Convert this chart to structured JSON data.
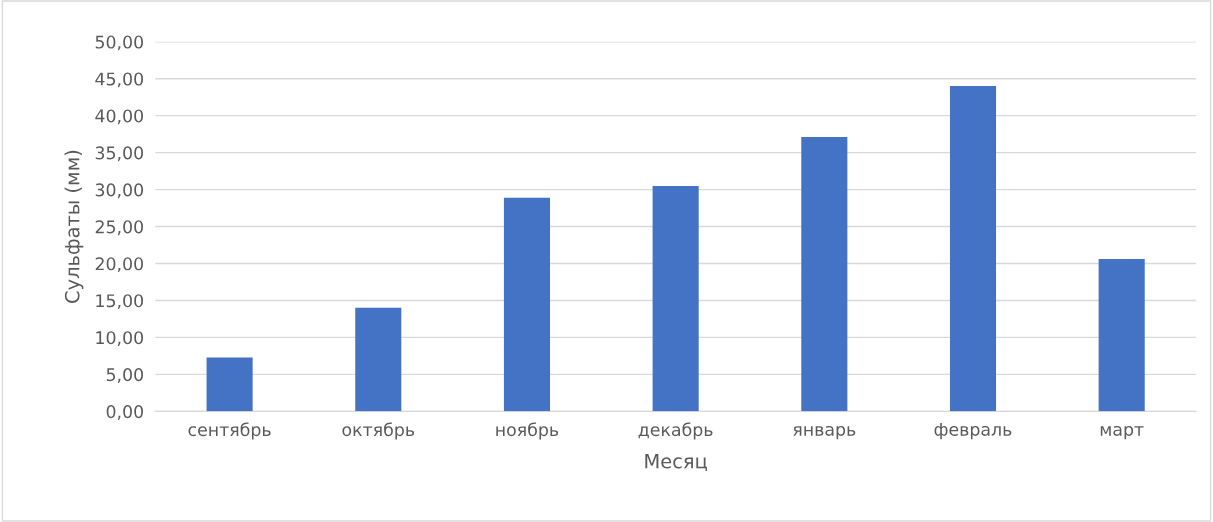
{
  "chart_data": {
    "type": "bar",
    "xlabel": "Месяц",
    "ylabel": "Сульфаты (мм)",
    "categories": [
      "сентябрь",
      "октябрь",
      "ноябрь",
      "декабрь",
      "январь",
      "февраль",
      "март"
    ],
    "values": [
      7.3,
      14.0,
      28.9,
      30.5,
      37.1,
      44.0,
      20.6
    ],
    "color": "#4472c4",
    "ylim": [
      0,
      50
    ],
    "yticks": [
      {
        "value": 0,
        "label": "0,00"
      },
      {
        "value": 5,
        "label": "5,00"
      },
      {
        "value": 10,
        "label": "10,00"
      },
      {
        "value": 15,
        "label": "15,00"
      },
      {
        "value": 20,
        "label": "20,00"
      },
      {
        "value": 25,
        "label": "25,00"
      },
      {
        "value": 30,
        "label": "30,00"
      },
      {
        "value": 35,
        "label": "35,00"
      },
      {
        "value": 40,
        "label": "40,00"
      },
      {
        "value": 45,
        "label": "45,00"
      },
      {
        "value": 50,
        "label": "50,00"
      }
    ],
    "grid": "y",
    "legend": false
  }
}
